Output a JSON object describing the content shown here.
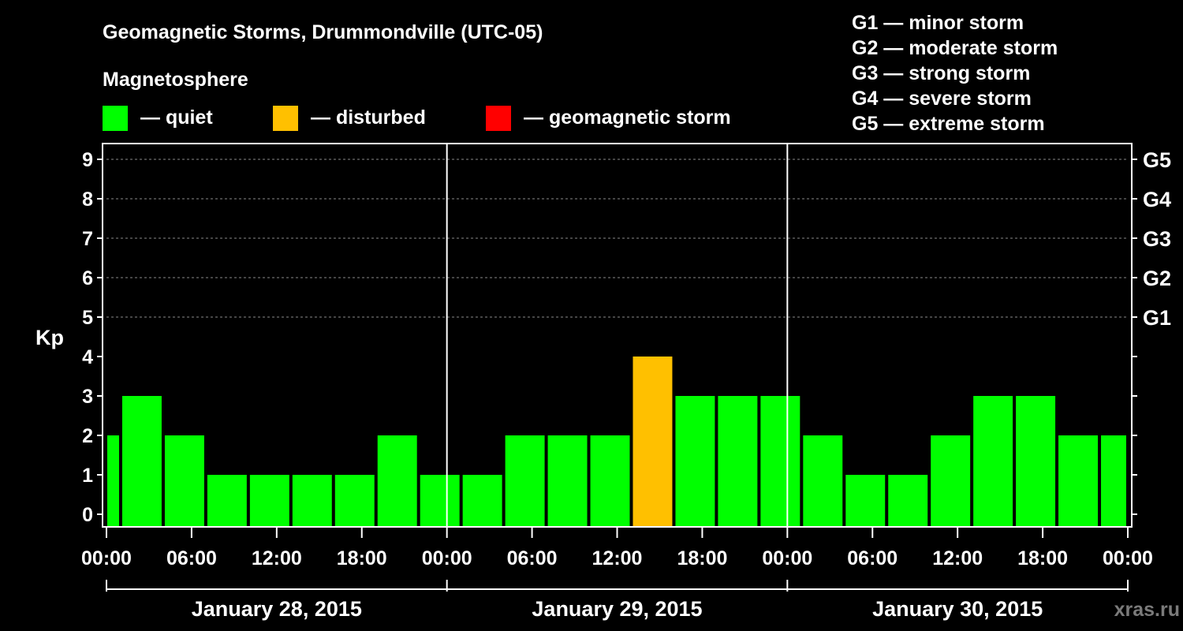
{
  "chart_data": {
    "type": "bar",
    "title": "Geomagnetic Storms, Drummondville (UTC-05)",
    "ylabel": "Kp",
    "ylim": [
      0,
      9
    ],
    "yticks": [
      "0",
      "1",
      "2",
      "3",
      "4",
      "5",
      "6",
      "7",
      "8",
      "9"
    ],
    "grid_levels": [
      5,
      6,
      7,
      8,
      9
    ],
    "storm_scale": [
      {
        "level": 5,
        "label": "G1"
      },
      {
        "level": 6,
        "label": "G2"
      },
      {
        "level": 7,
        "label": "G3"
      },
      {
        "level": 8,
        "label": "G4"
      },
      {
        "level": 9,
        "label": "G5"
      }
    ],
    "values": [
      2,
      3,
      2,
      1,
      1,
      1,
      1,
      2,
      1,
      1,
      2,
      2,
      2,
      4,
      3,
      3,
      3,
      2,
      1,
      1,
      2,
      3,
      3,
      2,
      2
    ],
    "bar_hours": 3,
    "start_offset_hours": -2,
    "total_hours": 72,
    "x_tick_labels": [
      "00:00",
      "06:00",
      "12:00",
      "18:00",
      "00:00",
      "06:00",
      "12:00",
      "18:00",
      "00:00",
      "06:00",
      "12:00",
      "18:00",
      "00:00"
    ],
    "x_tick_every_hours": 6,
    "days": [
      "January 28, 2015",
      "January 29, 2015",
      "January 30, 2015"
    ],
    "legend": {
      "heading": "Magnetosphere",
      "items": [
        {
          "label": "— quiet",
          "color": "#00ff00"
        },
        {
          "label": "— disturbed",
          "color": "#ffc000"
        },
        {
          "label": "— geomagnetic storm",
          "color": "#ff0000"
        }
      ]
    },
    "scale_legend": [
      "G1 — minor storm",
      "G2 — moderate storm",
      "G3 — strong storm",
      "G4 — severe storm",
      "G5 — extreme storm"
    ],
    "colors": {
      "quiet": "#00ff00",
      "disturbed": "#ffc000",
      "storm": "#ff0000",
      "background": "#000000",
      "axis": "#ffffff"
    },
    "watermark": "xras.ru"
  }
}
